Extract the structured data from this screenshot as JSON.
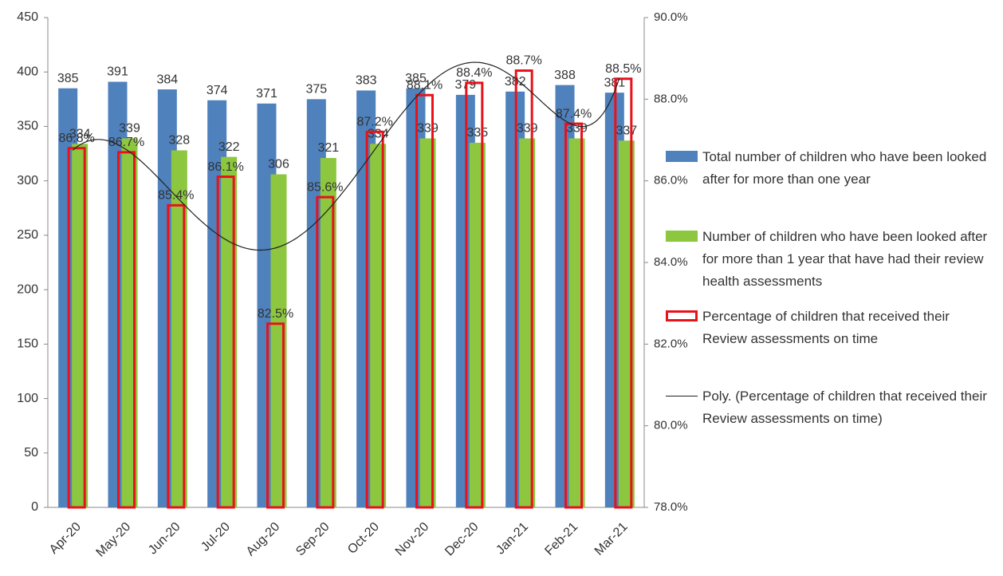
{
  "chart_data": {
    "type": "bar",
    "categories": [
      "Apr-20",
      "May-20",
      "Jun-20",
      "Jul-20",
      "Aug-20",
      "Sep-20",
      "Oct-20",
      "Nov-20",
      "Dec-20",
      "Jan-21",
      "Feb-21",
      "Mar-21"
    ],
    "series": [
      {
        "name": "Total number of children who have been looked after for more than one year",
        "color": "#4f81bd",
        "values": [
          385,
          391,
          384,
          374,
          371,
          375,
          383,
          385,
          379,
          382,
          388,
          381
        ]
      },
      {
        "name": "Number of children who have been looked after for more than 1 year that have had their review health assessments",
        "color": "#8dc63f",
        "values": [
          334,
          339,
          328,
          322,
          306,
          321,
          334,
          339,
          335,
          339,
          339,
          337
        ]
      },
      {
        "name": "Percentage of children that received their Review assessments on time",
        "color": "#e8121b",
        "axis": "y2",
        "values": [
          86.8,
          86.7,
          85.4,
          86.1,
          82.5,
          85.6,
          87.2,
          88.1,
          88.4,
          88.7,
          87.4,
          88.5
        ],
        "value_labels": [
          "86.8%",
          "86.7%",
          "85.4%",
          "86.1%",
          "82.5%",
          "85.6%",
          "87.2%",
          "88.1%",
          "88.4%",
          "88.7%",
          "87.4%",
          "88.5%"
        ]
      }
    ],
    "trendline": {
      "name": "Poly. (Percentage of children that received their Review assessments on time)",
      "type": "polynomial",
      "color": "#222"
    },
    "ylim": [
      0,
      450
    ],
    "yticks": [
      0,
      50,
      100,
      150,
      200,
      250,
      300,
      350,
      400,
      450
    ],
    "y2lim": [
      78,
      90
    ],
    "y2ticks": [
      {
        "value": 78,
        "label": "78.0%"
      },
      {
        "value": 80,
        "label": "80.0%"
      },
      {
        "value": 82,
        "label": "82.0%"
      },
      {
        "value": 84,
        "label": "84.0%"
      },
      {
        "value": 86,
        "label": "86.0%"
      },
      {
        "value": 88,
        "label": "88.0%"
      },
      {
        "value": 90,
        "label": "90.0%"
      }
    ],
    "grid": false,
    "legend": "right"
  }
}
